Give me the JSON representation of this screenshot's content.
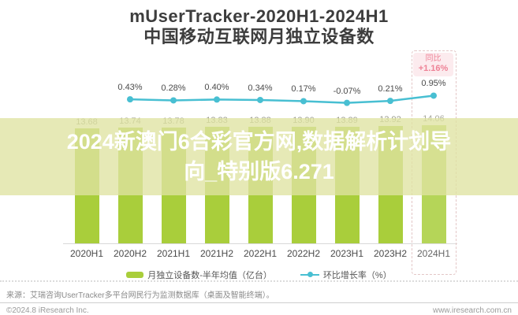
{
  "title": {
    "line1": "mUserTracker-2020H1-2024H1",
    "line2": "中国移动互联网月独立设备数"
  },
  "badge": {
    "label": "同比",
    "value": "+1.16%"
  },
  "watermark": {
    "line1": "2024新澳门6合彩官方网,数据解析计划导",
    "line2": "向_特别版6.271"
  },
  "legend": {
    "bar_label": "月独立设备数-半年均值（亿台）",
    "line_label": "环比增长率（%）"
  },
  "source": "来源：艾瑞咨询UserTracker多平台网民行为监测数据库（桌面及智能终端）。",
  "footer": {
    "left": "©2024.8 iResearch Inc.",
    "right": "www.iresearch.com.cn"
  },
  "colors": {
    "bar": "#a9ce3b",
    "line": "#48bfd2",
    "badge_text": "#ee8296",
    "badge_bg": "#fcebee",
    "highlight_border": "#e3c6c6",
    "watermark_band": "rgba(223,227,162,0.78)",
    "title_text": "#3d3d3d"
  },
  "chart_data": {
    "type": "bar",
    "title": "mUserTracker-2020H1-2024H1 中国移动互联网月独立设备数",
    "categories": [
      "2020H1",
      "2020H2",
      "2021H1",
      "2021H2",
      "2022H1",
      "2022H2",
      "2023H1",
      "2023H2",
      "2024H1"
    ],
    "series": [
      {
        "name": "月独立设备数-半年均值（亿台）",
        "type": "bar",
        "values": [
          13.68,
          13.74,
          13.78,
          13.83,
          13.88,
          13.9,
          13.89,
          13.92,
          14.06
        ],
        "labels": [
          "13.68",
          "13.74",
          "13.78",
          "13.83",
          "13.88",
          "13.90",
          "13.89",
          "13.92",
          "14.06"
        ]
      },
      {
        "name": "环比增长率（%）",
        "type": "line",
        "values": [
          null,
          0.43,
          0.28,
          0.4,
          0.34,
          0.17,
          -0.07,
          0.21,
          0.95
        ],
        "labels": [
          null,
          "0.43%",
          "0.28%",
          "0.40%",
          "0.34%",
          "0.17%",
          "-0.07%",
          "0.21%",
          "0.95%"
        ]
      }
    ],
    "yoy_annotation": {
      "category": "2024H1",
      "label": "同比",
      "value": "+1.16%"
    },
    "highlight_category": "2024H1",
    "legend_position": "bottom",
    "grid": false,
    "xlabel": "",
    "ylabel": ""
  }
}
